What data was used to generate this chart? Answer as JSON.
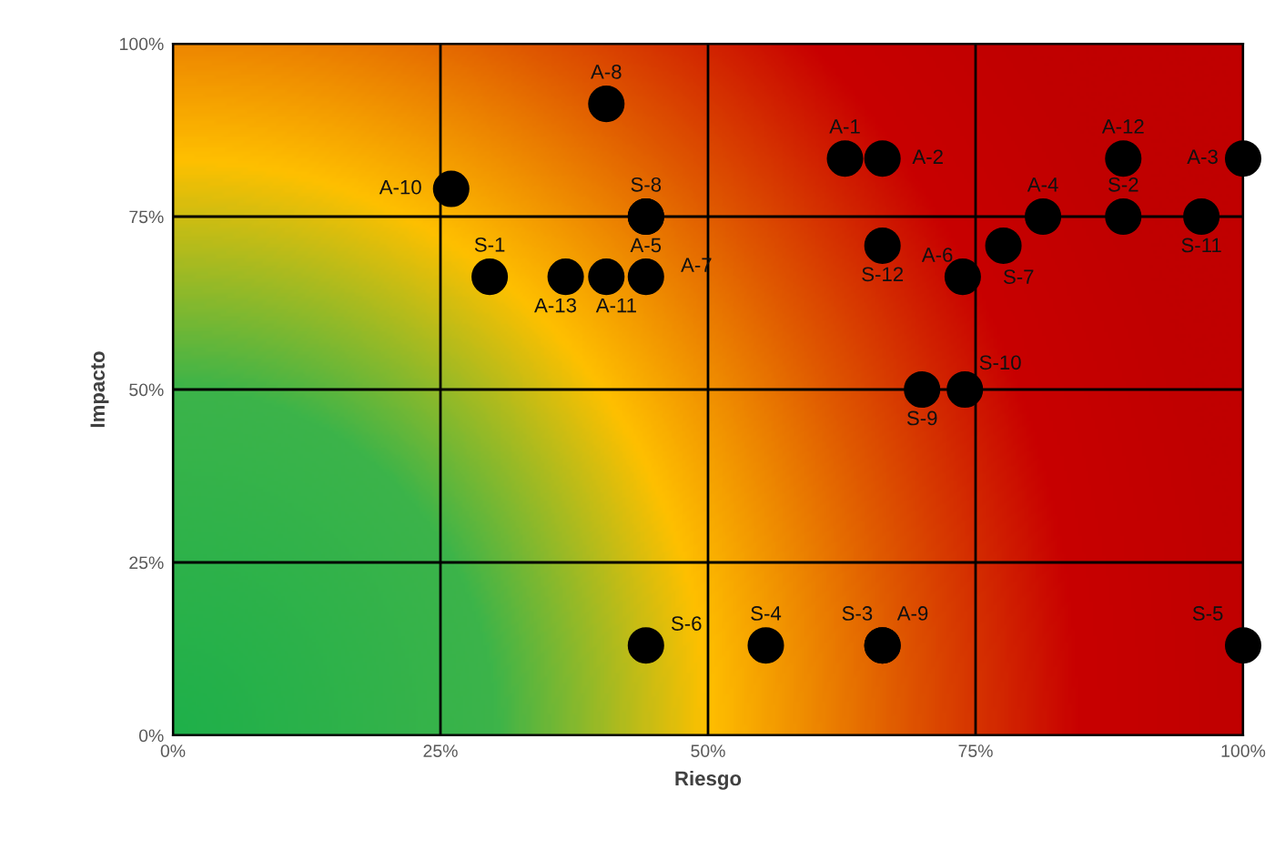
{
  "chart_data": {
    "type": "scatter",
    "xlabel": "Riesgo",
    "ylabel": "Impacto",
    "xlim": [
      0,
      100
    ],
    "ylim": [
      0,
      100
    ],
    "xticks": [
      {
        "value": 0,
        "label": "0%"
      },
      {
        "value": 25,
        "label": "25%"
      },
      {
        "value": 50,
        "label": "50%"
      },
      {
        "value": 75,
        "label": "75%"
      },
      {
        "value": 100,
        "label": "100%"
      }
    ],
    "yticks": [
      {
        "value": 0,
        "label": "0%"
      },
      {
        "value": 25,
        "label": "25%"
      },
      {
        "value": 50,
        "label": "50%"
      },
      {
        "value": 75,
        "label": "75%"
      },
      {
        "value": 100,
        "label": "100%"
      }
    ],
    "grid": true,
    "marker": "circle",
    "legend": false,
    "series": [
      {
        "color": "#000000",
        "x": [
          26,
          29.6,
          36.7,
          40.5,
          44.2,
          44.2,
          44.2,
          40.5,
          62.8,
          66.3,
          66.3,
          73.8,
          77.6,
          81.3,
          88.8,
          88.8,
          100,
          96.1,
          70,
          74,
          44.2,
          55.4,
          66.3,
          66.3,
          100
        ],
        "values": [
          79,
          66.3,
          66.3,
          66.3,
          66.3,
          75,
          75,
          91.3,
          83.4,
          83.4,
          70.8,
          66.3,
          70.8,
          75,
          75,
          83.4,
          83.4,
          75,
          50,
          50,
          13,
          13,
          13,
          13,
          13
        ],
        "value_labels": [
          "A-10",
          "S-1",
          "A-13",
          "A-11",
          "A-7",
          "A-5",
          "S-8",
          "A-8",
          "A-1",
          "A-2",
          "S-12",
          "A-6",
          "S-7",
          "A-4",
          "S-2",
          "A-12",
          "A-3",
          "S-11",
          "S-9",
          "S-10",
          "S-6",
          "S-4",
          "S-3",
          "A-9",
          "S-5"
        ]
      }
    ]
  }
}
